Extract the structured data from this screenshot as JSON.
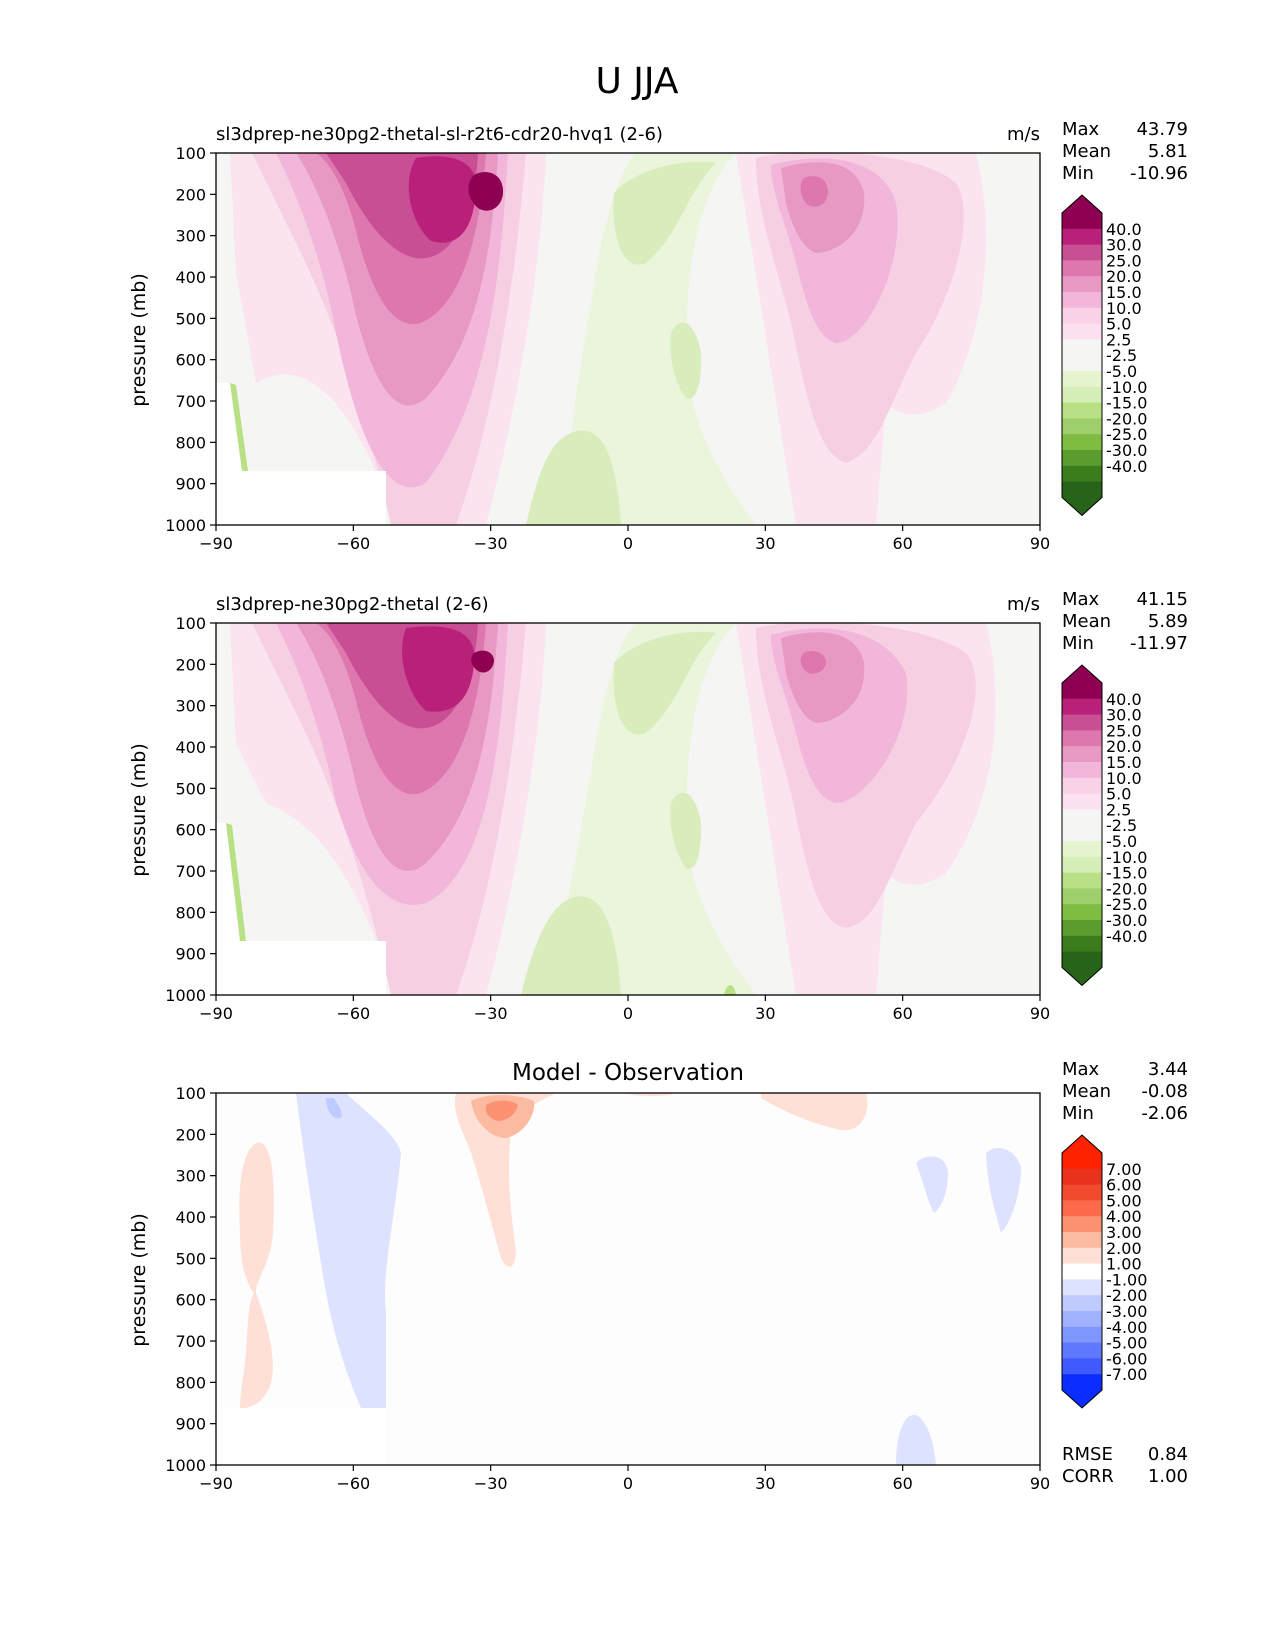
{
  "figure_title": "U JJA",
  "colors": {
    "pos": [
      "#fde0ef",
      "#f9d2e7",
      "#f1b6da",
      "#e799c4",
      "#de77ae",
      "#c94f95",
      "#b8207a",
      "#8e0152"
    ],
    "neg": [
      "#e6f5d0",
      "#d6eeb8",
      "#b8e186",
      "#9fcf6c",
      "#7fbc41",
      "#5a9c2d",
      "#3b7d1d",
      "#276419"
    ],
    "neutral": "#f5f5f3",
    "diff_pos": [
      "#fee0d6",
      "#fcbba1",
      "#fc9272",
      "#fb6a4a",
      "#f24a2f",
      "#e8321e",
      "#ff2200"
    ],
    "diff_neg": [
      "#dde3ff",
      "#bfcaff",
      "#a0b2ff",
      "#7f95ff",
      "#5e78ff",
      "#3f5bff",
      "#0a2eff"
    ]
  },
  "chart_data": [
    {
      "type": "contour",
      "panel_title": "sl3dprep-ne30pg2-thetal-sl-r2t6-cdr20-hvq1 (2-6)",
      "units": "m/s",
      "ylabel": "pressure (mb)",
      "x_ticks": [
        "−90",
        "−60",
        "−30",
        "0",
        "30",
        "60",
        "90"
      ],
      "y_ticks": [
        "100",
        "200",
        "300",
        "400",
        "500",
        "600",
        "700",
        "800",
        "900",
        "1000"
      ],
      "xlim": [
        -90,
        90
      ],
      "ylim": [
        1000,
        100
      ],
      "stats": [
        {
          "label": "Max",
          "value": "43.79"
        },
        {
          "label": "Mean",
          "value": "5.81"
        },
        {
          "label": "Min",
          "value": "-10.96"
        }
      ],
      "colorbar_labels": [
        "40.0",
        "30.0",
        "25.0",
        "20.0",
        "15.0",
        "10.0",
        "5.0",
        "2.5",
        "-2.5",
        "-5.0",
        "-10.0",
        "-15.0",
        "-20.0",
        "-25.0",
        "-30.0",
        "-40.0"
      ],
      "features": [
        {
          "kind": "jet",
          "lat": -30,
          "p": 200,
          "value": 43.79
        },
        {
          "kind": "jet",
          "lat": 45,
          "p": 200,
          "value": 25
        },
        {
          "kind": "easterly",
          "lat": 10,
          "p": 600,
          "value": -10.96
        }
      ]
    },
    {
      "type": "contour",
      "panel_title": "sl3dprep-ne30pg2-thetal (2-6)",
      "units": "m/s",
      "ylabel": "pressure (mb)",
      "x_ticks": [
        "−90",
        "−60",
        "−30",
        "0",
        "30",
        "60",
        "90"
      ],
      "y_ticks": [
        "100",
        "200",
        "300",
        "400",
        "500",
        "600",
        "700",
        "800",
        "900",
        "1000"
      ],
      "xlim": [
        -90,
        90
      ],
      "ylim": [
        1000,
        100
      ],
      "stats": [
        {
          "label": "Max",
          "value": "41.15"
        },
        {
          "label": "Mean",
          "value": "5.89"
        },
        {
          "label": "Min",
          "value": "-11.97"
        }
      ],
      "colorbar_labels": [
        "40.0",
        "30.0",
        "25.0",
        "20.0",
        "15.0",
        "10.0",
        "5.0",
        "2.5",
        "-2.5",
        "-5.0",
        "-10.0",
        "-15.0",
        "-20.0",
        "-25.0",
        "-30.0",
        "-40.0"
      ],
      "features": [
        {
          "kind": "jet",
          "lat": -30,
          "p": 200,
          "value": 41.15
        },
        {
          "kind": "jet",
          "lat": 45,
          "p": 200,
          "value": 25
        },
        {
          "kind": "easterly",
          "lat": 10,
          "p": 600,
          "value": -11.97
        }
      ]
    },
    {
      "type": "contour",
      "panel_title": "Model - Observation",
      "units": "",
      "ylabel": "pressure (mb)",
      "x_ticks": [
        "−90",
        "−60",
        "−30",
        "0",
        "30",
        "60",
        "90"
      ],
      "y_ticks": [
        "100",
        "200",
        "300",
        "400",
        "500",
        "600",
        "700",
        "800",
        "900",
        "1000"
      ],
      "xlim": [
        -90,
        90
      ],
      "ylim": [
        1000,
        100
      ],
      "stats": [
        {
          "label": "Max",
          "value": "3.44"
        },
        {
          "label": "Mean",
          "value": "-0.08"
        },
        {
          "label": "Min",
          "value": "-2.06"
        }
      ],
      "colorbar_labels": [
        "7.00",
        "6.00",
        "5.00",
        "4.00",
        "3.00",
        "2.00",
        "1.00",
        "-1.00",
        "-2.00",
        "-3.00",
        "-4.00",
        "-5.00",
        "-6.00",
        "-7.00"
      ],
      "bottom_stats": [
        {
          "label": "RMSE",
          "value": "0.84"
        },
        {
          "label": "CORR",
          "value": "1.00"
        }
      ]
    }
  ]
}
